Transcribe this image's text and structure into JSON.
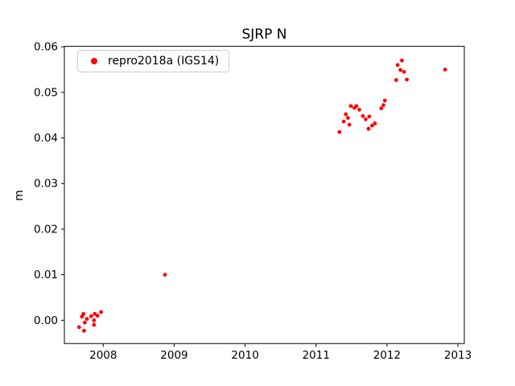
{
  "figure": {
    "background": "#ffffff",
    "axes_edge_color": "#000000",
    "text_color": "#000000"
  },
  "chart_data": {
    "type": "scatter",
    "title": "SJRP N",
    "xlabel": "",
    "ylabel": "m",
    "grid": false,
    "xlim": [
      2007.452,
      2013.09
    ],
    "ylim": [
      -0.0051,
      0.0601
    ],
    "x_ticks": [
      2008,
      2009,
      2010,
      2011,
      2012,
      2013
    ],
    "y_ticks": [
      0.0,
      0.01,
      0.02,
      0.03,
      0.04,
      0.05,
      0.06
    ],
    "legend": {
      "position": "upper-left",
      "border_color": "#cccccc",
      "background": "#ffffff"
    },
    "series": [
      {
        "name": "repro2018a (IGS14)",
        "color": "#ff0000",
        "marker": "dot",
        "points": [
          [
            2007.66,
            -0.0015
          ],
          [
            2007.7,
            0.0008
          ],
          [
            2007.72,
            0.0014
          ],
          [
            2007.73,
            -0.0023
          ],
          [
            2007.74,
            -0.0005
          ],
          [
            2007.77,
            0.0003
          ],
          [
            2007.83,
            0.0009
          ],
          [
            2007.87,
            0.0
          ],
          [
            2007.87,
            -0.001
          ],
          [
            2007.88,
            0.0014
          ],
          [
            2007.92,
            0.001
          ],
          [
            2007.97,
            0.0018
          ],
          [
            2008.87,
            0.01
          ],
          [
            2011.33,
            0.0413
          ],
          [
            2011.39,
            0.0436
          ],
          [
            2011.42,
            0.0452
          ],
          [
            2011.45,
            0.0444
          ],
          [
            2011.47,
            0.0429
          ],
          [
            2011.49,
            0.047
          ],
          [
            2011.54,
            0.0466
          ],
          [
            2011.57,
            0.047
          ],
          [
            2011.61,
            0.0462
          ],
          [
            2011.66,
            0.0448
          ],
          [
            2011.7,
            0.0441
          ],
          [
            2011.74,
            0.042
          ],
          [
            2011.75,
            0.0447
          ],
          [
            2011.79,
            0.0427
          ],
          [
            2011.83,
            0.0432
          ],
          [
            2011.92,
            0.0465
          ],
          [
            2011.95,
            0.0472
          ],
          [
            2011.97,
            0.0482
          ],
          [
            2012.13,
            0.0527
          ],
          [
            2012.15,
            0.056
          ],
          [
            2012.19,
            0.0549
          ],
          [
            2012.21,
            0.057
          ],
          [
            2012.24,
            0.0545
          ],
          [
            2012.28,
            0.0528
          ],
          [
            2012.82,
            0.055
          ]
        ]
      }
    ]
  }
}
